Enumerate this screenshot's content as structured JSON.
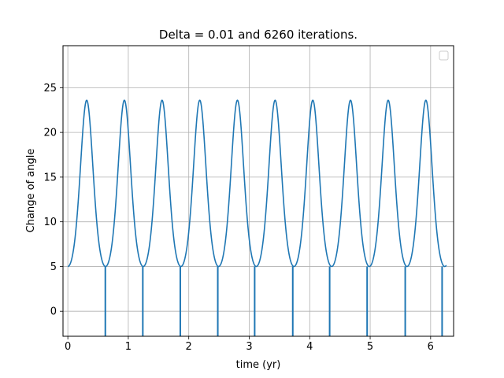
{
  "chart_data": {
    "type": "line",
    "title": "Delta = 0.01 and 6260 iterations.",
    "xlabel": "time (yr)",
    "ylabel": "Change of angle",
    "xlim": [
      -0.08,
      6.38
    ],
    "ylim": [
      -2.8,
      29.7
    ],
    "xticks": [
      0,
      1,
      2,
      3,
      4,
      5,
      6
    ],
    "xtick_labels": [
      "0",
      "1",
      "2",
      "3",
      "4",
      "5",
      "6"
    ],
    "yticks": [
      0,
      5,
      10,
      15,
      20,
      25
    ],
    "ytick_labels": [
      "0",
      "5",
      "10",
      "15",
      "20",
      "25"
    ],
    "grid": true,
    "legend": "top-right",
    "line_color": "#1f77b4",
    "series": [
      {
        "curve": {
          "x_start": 0,
          "x_end": 6.26,
          "period": 0.6233,
          "peak_offset": 0.3117,
          "baseline": 5.0,
          "peak": 23.6
        },
        "drops": [
          {
            "x": 0.62,
            "y_low": -2.8
          },
          {
            "x": 1.24,
            "y_low": -2.8
          },
          {
            "x": 1.86,
            "y_low": -2.8
          },
          {
            "x": 2.48,
            "y_low": -2.8
          },
          {
            "x": 3.09,
            "y_low": -2.8
          },
          {
            "x": 3.72,
            "y_low": -2.8
          },
          {
            "x": 4.33,
            "y_low": -2.8
          },
          {
            "x": 4.95,
            "y_low": -2.8
          },
          {
            "x": 5.58,
            "y_low": -2.8
          },
          {
            "x": 6.19,
            "y_low": -2.8
          }
        ]
      }
    ]
  }
}
